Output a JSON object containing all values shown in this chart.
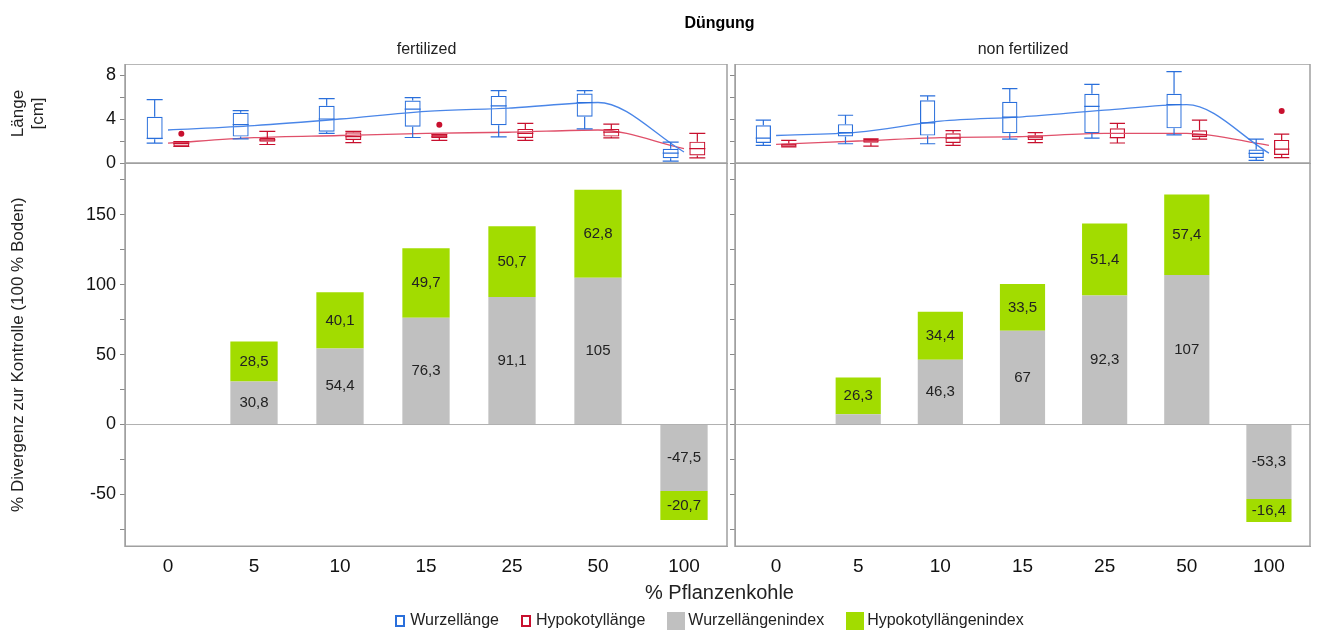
{
  "chart_data": [
    {
      "type": "box",
      "title": "Düngung",
      "subtitle": "fertilized",
      "ylabel": "Länge [cm]",
      "categories": [
        "0",
        "5",
        "10",
        "15",
        "25",
        "50",
        "100"
      ],
      "ylim": [
        0,
        9
      ],
      "yticks": [
        0,
        {
          "value": 2,
          "label": null
        },
        4,
        {
          "value": 6,
          "label": null
        },
        8
      ],
      "tick_labels": "y",
      "legend": "bottom",
      "series": [
        {
          "name": "Wurzellänge",
          "type": "box",
          "color": "#2a6fdb",
          "boxes": [
            {
              "low": 1.8,
              "q1": 2.15,
              "median": 2.24,
              "q3": 4.2,
              "high": 5.76
            },
            {
              "low": 2.2,
              "q1": 2.4,
              "median": 3.48,
              "q3": 4.56,
              "high": 4.77
            },
            {
              "low": 2.7,
              "q1": 2.84,
              "median": 4.0,
              "q3": 5.2,
              "high": 5.85
            },
            {
              "low": 2.32,
              "q1": 3.3,
              "median": 4.9,
              "q3": 5.68,
              "high": 5.94
            },
            {
              "low": 2.37,
              "q1": 3.44,
              "median": 5.2,
              "q3": 6.1,
              "high": 6.58
            },
            {
              "low": 3.1,
              "q1": 4.2,
              "median": 5.5,
              "q3": 6.32,
              "high": 6.58
            },
            {
              "low": 0.17,
              "q1": 0.43,
              "median": 0.9,
              "q3": 1.3,
              "high": 1.9
            }
          ]
        },
        {
          "name": "Hypokotyllänge",
          "type": "box",
          "color": "#c8102e",
          "boxes": [
            {
              "low": 1.5,
              "q1": 1.5,
              "median": 1.76,
              "q3": 1.9,
              "high": 1.94,
              "outliers": [
                2.67
              ]
            },
            {
              "low": 1.68,
              "q1": 1.94,
              "median": 2.1,
              "q3": 2.28,
              "high": 2.88
            },
            {
              "low": 1.85,
              "q1": 2.1,
              "median": 2.4,
              "q3": 2.8,
              "high": 2.88
            },
            {
              "low": 2.06,
              "q1": 2.28,
              "median": 2.37,
              "q3": 2.58,
              "high": 2.58,
              "outliers": [
                3.48
              ]
            },
            {
              "low": 2.06,
              "q1": 2.28,
              "median": 2.7,
              "q3": 3.1,
              "high": 3.6
            },
            {
              "low": 2.28,
              "q1": 2.4,
              "median": 2.8,
              "q3": 3.1,
              "high": 3.53
            },
            {
              "low": 0.47,
              "q1": 0.69,
              "median": 1.3,
              "q3": 1.94,
              "high": 2.7
            }
          ]
        },
        {
          "type": "line",
          "color": "#4a86e8",
          "values": [
            3.0,
            3.4,
            4.0,
            4.7,
            5.0,
            5.5,
            1.0
          ]
        },
        {
          "type": "line",
          "color": "#e0506a",
          "values": [
            1.8,
            2.3,
            2.5,
            2.7,
            2.8,
            3.0,
            1.3
          ]
        }
      ]
    },
    {
      "type": "box",
      "subtitle": "non fertilized",
      "categories": [
        "0",
        "5",
        "10",
        "15",
        "25",
        "50",
        "100"
      ],
      "ylim": [
        0,
        9
      ],
      "yticks": [
        0,
        {
          "value": 2,
          "label": null
        },
        4,
        {
          "value": 6,
          "label": null
        },
        8
      ],
      "tick_labels": false,
      "series": [
        {
          "type": "box",
          "color": "#2a6fdb",
          "boxes": [
            {
              "low": 1.61,
              "q1": 1.82,
              "median": 2.27,
              "q3": 3.43,
              "high": 3.89
            },
            {
              "low": 1.75,
              "q1": 2.41,
              "median": 2.76,
              "q3": 3.53,
              "high": 4.34
            },
            {
              "low": 1.75,
              "q1": 2.49,
              "median": 3.64,
              "q3": 5.7,
              "high": 6.1
            },
            {
              "low": 2.17,
              "q1": 2.7,
              "median": 4.17,
              "q3": 5.57,
              "high": 6.76
            },
            {
              "low": 2.27,
              "q1": 2.7,
              "median": 5.15,
              "q3": 6.3,
              "high": 7.15
            },
            {
              "low": 2.55,
              "q1": 3.15,
              "median": 5.32,
              "q3": 6.3,
              "high": 8.3
            },
            {
              "low": 0.24,
              "q1": 0.45,
              "median": 0.87,
              "q3": 1.22,
              "high": 2.17
            }
          ]
        },
        {
          "type": "box",
          "color": "#c8102e",
          "boxes": [
            {
              "low": 1.47,
              "q1": 1.47,
              "median": 1.64,
              "q3": 1.78,
              "high": 2.06
            },
            {
              "low": 1.54,
              "q1": 1.85,
              "median": 2.0,
              "q3": 2.2,
              "high": 2.2
            },
            {
              "low": 1.61,
              "q1": 1.82,
              "median": 2.27,
              "q3": 2.7,
              "high": 2.94
            },
            {
              "low": 1.85,
              "q1": 2.1,
              "median": 2.34,
              "q3": 2.52,
              "high": 2.76
            },
            {
              "low": 1.82,
              "q1": 2.24,
              "median": 2.3,
              "q3": 3.15,
              "high": 3.6
            },
            {
              "low": 2.17,
              "q1": 2.34,
              "median": 2.55,
              "q3": 2.97,
              "high": 3.89
            },
            {
              "low": 0.49,
              "q1": 0.73,
              "median": 1.26,
              "q3": 2.1,
              "high": 2.62,
              "outliers": [
                4.72
              ]
            }
          ]
        },
        {
          "type": "line",
          "color": "#4a86e8",
          "values": [
            2.5,
            2.8,
            3.8,
            4.2,
            4.8,
            5.3,
            0.9
          ]
        },
        {
          "type": "line",
          "color": "#e0506a",
          "values": [
            1.7,
            2.0,
            2.3,
            2.4,
            2.7,
            2.7,
            1.6
          ]
        }
      ]
    },
    {
      "type": "bar",
      "stacked": true,
      "xlabel": "% Pflanzenkohle",
      "ylabel": "% Divergenz zur Kontrolle (100 % Boden)",
      "categories": [
        "0",
        "5",
        "10",
        "15",
        "25",
        "50",
        "100"
      ],
      "ylim": [
        -87,
        187
      ],
      "yticks": [
        {
          "value": -75,
          "label": null
        },
        -50,
        {
          "value": -25,
          "label": null
        },
        0,
        {
          "value": 25,
          "label": null
        },
        50,
        {
          "value": 75,
          "label": null
        },
        100,
        {
          "value": 125,
          "label": null
        },
        150,
        {
          "value": 175,
          "label": null
        }
      ],
      "legend": "bottom",
      "ref_lines": [
        {
          "axis": "y",
          "value": 0,
          "color": "#b0b0b0"
        }
      ],
      "series": [
        {
          "name": "Wurzellängenindex",
          "color": "#c0c0c0",
          "values": [
            null,
            30.8,
            54.4,
            76.3,
            91.1,
            105,
            -47.5
          ],
          "value_labels": [
            null,
            "30,8",
            "54,4",
            "76,3",
            "91,1",
            "105",
            "-47,5"
          ]
        },
        {
          "name": "Hypokotyllängenindex",
          "color": "#a2dc00",
          "values": [
            null,
            28.5,
            40.1,
            49.7,
            50.7,
            62.8,
            -20.7
          ],
          "value_labels": [
            null,
            "28,5",
            "40,1",
            "49,7",
            "50,7",
            "62,8",
            "-20,7"
          ]
        }
      ]
    },
    {
      "type": "bar",
      "stacked": true,
      "categories": [
        "0",
        "5",
        "10",
        "15",
        "25",
        "50",
        "100"
      ],
      "ylim": [
        -87,
        187
      ],
      "yticks": [
        {
          "value": -75,
          "label": null
        },
        -50,
        {
          "value": -25,
          "label": null
        },
        0,
        {
          "value": 25,
          "label": null
        },
        50,
        {
          "value": 75,
          "label": null
        },
        100,
        {
          "value": 125,
          "label": null
        },
        150,
        {
          "value": 175,
          "label": null
        }
      ],
      "tick_labels": "x",
      "ref_lines": [
        {
          "axis": "y",
          "value": 0,
          "color": "#b0b0b0"
        }
      ],
      "series": [
        {
          "color": "#c0c0c0",
          "values": [
            0,
            7.4,
            46.3,
            67,
            92.3,
            107,
            -53.3
          ],
          "value_labels": [
            null,
            null,
            "46,3",
            "67",
            "92,3",
            "107",
            "-53,3"
          ]
        },
        {
          "color": "#a2dc00",
          "values": [
            null,
            26.3,
            34.4,
            33.5,
            51.4,
            57.4,
            -16.4
          ],
          "value_labels": [
            null,
            "26,3",
            "34,4",
            "33,5",
            "51,4",
            "57,4",
            "-16,4"
          ]
        }
      ]
    }
  ]
}
